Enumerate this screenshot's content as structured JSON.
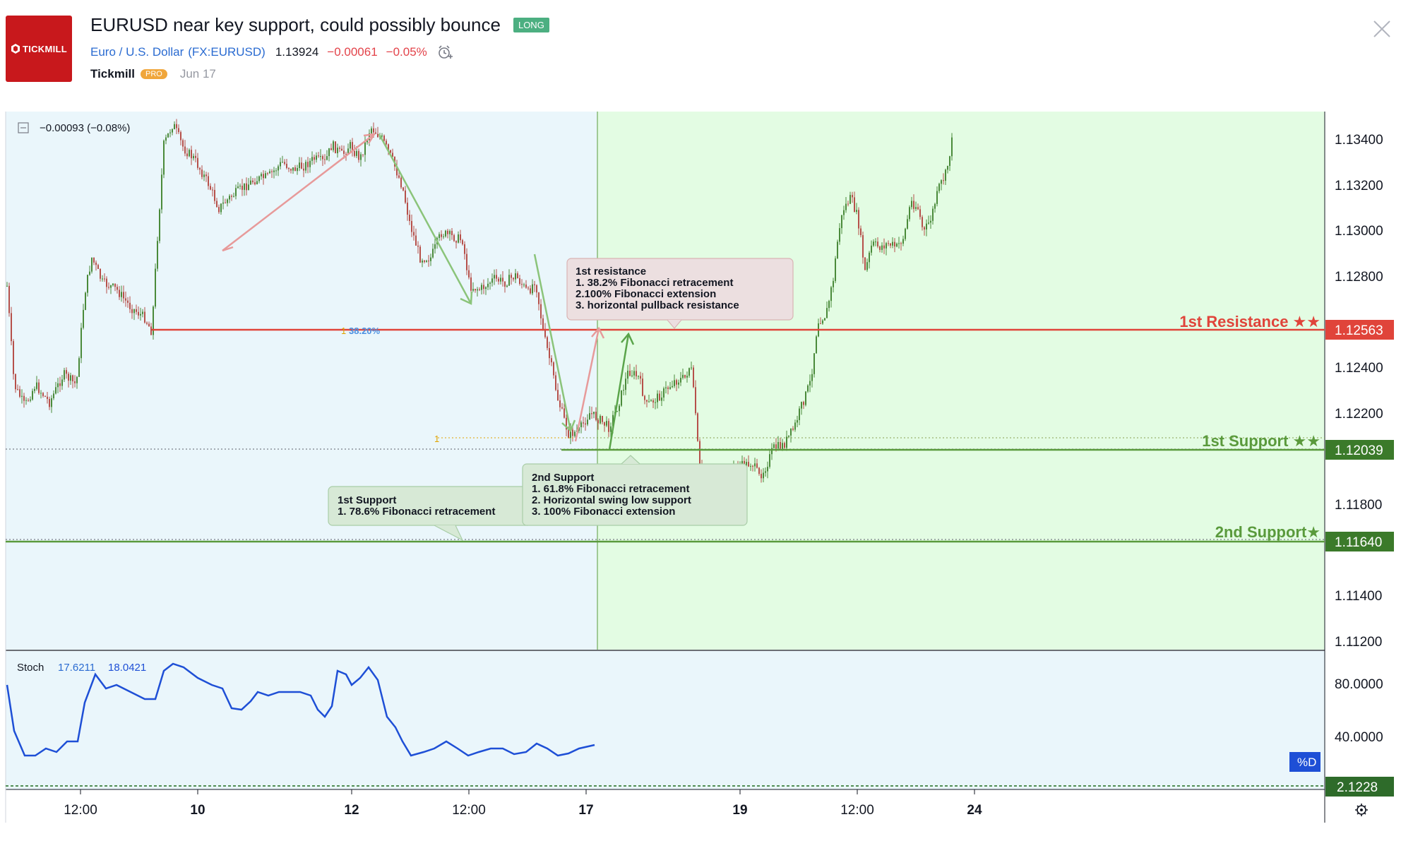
{
  "header": {
    "logo_text": "TICKMILL",
    "title": "EURUSD near key support, could possibly bounce",
    "badge": "LONG",
    "symbol_name": "Euro / U.S. Dollar",
    "symbol_code": "(FX:EURUSD)",
    "price": "1.13924",
    "change": "−0.00061",
    "change_pct": "−0.05%",
    "author": "Tickmill",
    "author_badge": "PRO",
    "date": "Jun 17",
    "colors": {
      "brand": "#c8181c",
      "long": "#4caf81",
      "down": "#e3434a",
      "link": "#2a6bd1"
    }
  },
  "chart": {
    "pane_change": "−0.00093 (−0.08%)",
    "price_ticks": [
      "1.13400",
      "1.13200",
      "1.13000",
      "1.12800",
      "1.12400",
      "1.12200",
      "1.11800",
      "1.11400",
      "1.11200"
    ],
    "price_labels": {
      "resistance": "1.12563",
      "support1": "1.12039",
      "support2": "1.11640"
    },
    "level_labels": {
      "resistance": "1st Resistance ★★",
      "support1": "1st Support ★★",
      "support2": "2nd Support★"
    },
    "fib_label": "38.20%",
    "fib_marker_1": "1",
    "fib_marker_2": "1",
    "notes": {
      "resistance": [
        "1st resistance",
        "1. 38.2% Fibonacci retracement",
        "2.100% Fibonacci extension",
        "3. horizontal pullback resistance"
      ],
      "support2": [
        "2nd Support",
        "1. 61.8% Fibonacci retracement",
        "2. Horizontal swing low support",
        "3. 100% Fibonacci extension"
      ],
      "support1": [
        "1st Support",
        "1.  78.6% Fibonacci retracement"
      ]
    },
    "stoch": {
      "name": "Stoch",
      "k": "17.6211",
      "d": "18.0421",
      "ticks": [
        "80.0000",
        "40.0000"
      ],
      "d_badge": "%D",
      "last": "2.1228"
    },
    "time_ticks": [
      "12:00",
      "10",
      "12",
      "12:00",
      "17",
      "19",
      "12:00",
      "24"
    ],
    "colors": {
      "resistance": "#e0443a",
      "support": "#5a9a3c",
      "bg_left": "#eaf6fb",
      "bg_right": "#e3fce3",
      "stoch": "#1e4fd6"
    }
  }
}
